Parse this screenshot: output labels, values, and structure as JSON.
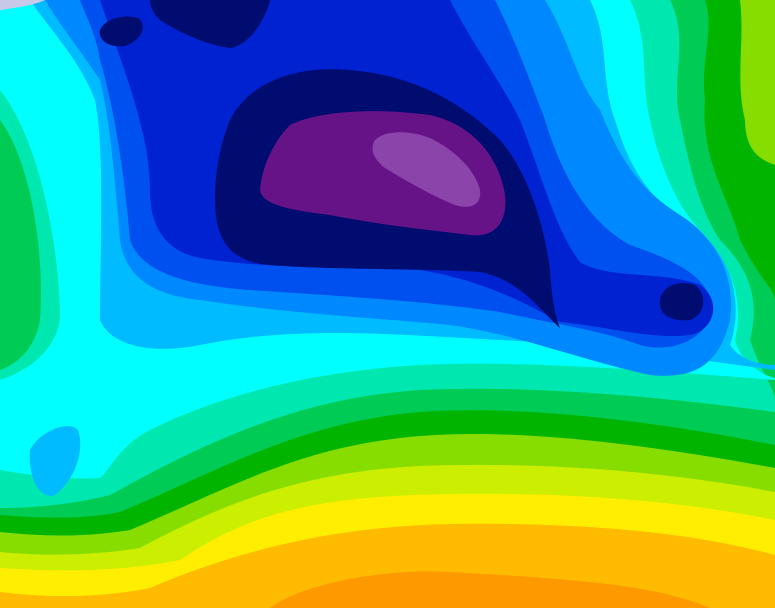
{
  "map": {
    "type": "filled-contour",
    "levels": [
      {
        "name": "orange",
        "color": "#ff9900"
      },
      {
        "name": "light-orange",
        "color": "#ffbb00"
      },
      {
        "name": "yellow",
        "color": "#ffee00"
      },
      {
        "name": "yellow-green",
        "color": "#ccee00"
      },
      {
        "name": "light-green",
        "color": "#88dd00"
      },
      {
        "name": "green",
        "color": "#00b400"
      },
      {
        "name": "medium-green",
        "color": "#00cc55"
      },
      {
        "name": "aquamarine",
        "color": "#00e8b0"
      },
      {
        "name": "cyan",
        "color": "#00ffff"
      },
      {
        "name": "light-blue",
        "color": "#00bbff"
      },
      {
        "name": "blue",
        "color": "#0088ff"
      },
      {
        "name": "medium-blue",
        "color": "#0050f0"
      },
      {
        "name": "deep-blue",
        "color": "#0022d0"
      },
      {
        "name": "navy",
        "color": "#000c70"
      },
      {
        "name": "purple",
        "color": "#661388"
      },
      {
        "name": "light-purple",
        "color": "#8a44aa"
      },
      {
        "name": "gray",
        "color": "#c8c8e8"
      }
    ]
  }
}
